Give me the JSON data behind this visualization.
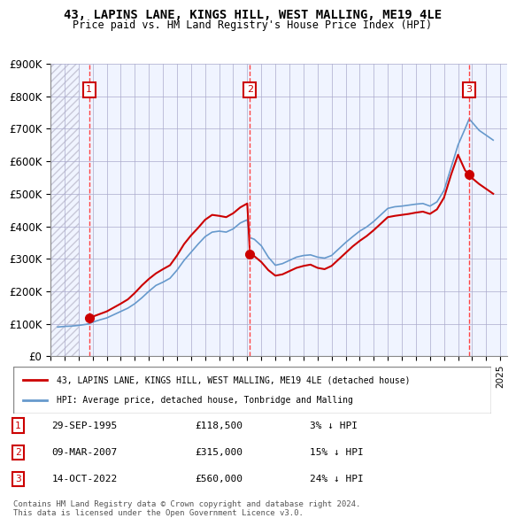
{
  "title": "43, LAPINS LANE, KINGS HILL, WEST MALLING, ME19 4LE",
  "subtitle": "Price paid vs. HM Land Registry's House Price Index (HPI)",
  "legend_label_red": "43, LAPINS LANE, KINGS HILL, WEST MALLING, ME19 4LE (detached house)",
  "legend_label_blue": "HPI: Average price, detached house, Tonbridge and Malling",
  "footer": "Contains HM Land Registry data © Crown copyright and database right 2024.\nThis data is licensed under the Open Government Licence v3.0.",
  "sales": [
    {
      "num": 1,
      "date": "29-SEP-1995",
      "price": 118500,
      "pct": "3%",
      "direction": "↓",
      "year": 1995.75
    },
    {
      "num": 2,
      "date": "09-MAR-2007",
      "price": 315000,
      "pct": "15%",
      "direction": "↓",
      "year": 2007.19
    },
    {
      "num": 3,
      "date": "14-OCT-2022",
      "price": 560000,
      "pct": "24%",
      "direction": "↓",
      "year": 2022.79
    }
  ],
  "ylim": [
    0,
    900000
  ],
  "xlim_start": 1993,
  "xlim_end": 2025.5,
  "hatch_end": 1995.0,
  "yticks": [
    0,
    100000,
    200000,
    300000,
    400000,
    500000,
    600000,
    700000,
    800000,
    900000
  ],
  "ytick_labels": [
    "£0",
    "£100K",
    "£200K",
    "£300K",
    "£400K",
    "£500K",
    "£600K",
    "£700K",
    "£800K",
    "£900K"
  ],
  "hpi_data": {
    "years": [
      1993.5,
      1994.0,
      1994.5,
      1995.0,
      1995.5,
      1995.75,
      1996.0,
      1996.5,
      1997.0,
      1997.5,
      1998.0,
      1998.5,
      1999.0,
      1999.5,
      2000.0,
      2000.5,
      2001.0,
      2001.5,
      2002.0,
      2002.5,
      2003.0,
      2003.5,
      2004.0,
      2004.5,
      2005.0,
      2005.5,
      2006.0,
      2006.5,
      2007.0,
      2007.19,
      2007.5,
      2008.0,
      2008.5,
      2009.0,
      2009.5,
      2010.0,
      2010.5,
      2011.0,
      2011.5,
      2012.0,
      2012.5,
      2013.0,
      2013.5,
      2014.0,
      2014.5,
      2015.0,
      2015.5,
      2016.0,
      2016.5,
      2017.0,
      2017.5,
      2018.0,
      2018.5,
      2019.0,
      2019.5,
      2020.0,
      2020.5,
      2021.0,
      2021.5,
      2022.0,
      2022.5,
      2022.79,
      2023.0,
      2023.5,
      2024.0,
      2024.5
    ],
    "values": [
      90000,
      92000,
      93000,
      95000,
      98000,
      100000,
      105000,
      112000,
      118000,
      128000,
      138000,
      148000,
      162000,
      180000,
      200000,
      218000,
      228000,
      240000,
      265000,
      295000,
      320000,
      345000,
      368000,
      382000,
      385000,
      382000,
      392000,
      410000,
      420000,
      365000,
      360000,
      340000,
      305000,
      280000,
      285000,
      295000,
      305000,
      310000,
      312000,
      305000,
      302000,
      310000,
      330000,
      350000,
      368000,
      385000,
      398000,
      415000,
      435000,
      455000,
      460000,
      462000,
      465000,
      468000,
      470000,
      462000,
      475000,
      510000,
      580000,
      650000,
      700000,
      730000,
      720000,
      695000,
      680000,
      665000
    ]
  },
  "price_data": {
    "years": [
      1995.75,
      1996.0,
      1996.5,
      1997.0,
      1997.5,
      1998.0,
      1998.5,
      1999.0,
      1999.5,
      2000.0,
      2000.5,
      2001.0,
      2001.5,
      2002.0,
      2002.5,
      2003.0,
      2003.5,
      2004.0,
      2004.5,
      2005.0,
      2005.5,
      2006.0,
      2006.5,
      2007.0,
      2007.19,
      2007.5,
      2008.0,
      2008.5,
      2009.0,
      2009.5,
      2010.0,
      2010.5,
      2011.0,
      2011.5,
      2012.0,
      2012.5,
      2013.0,
      2013.5,
      2014.0,
      2014.5,
      2015.0,
      2015.5,
      2016.0,
      2016.5,
      2017.0,
      2017.5,
      2018.0,
      2018.5,
      2019.0,
      2019.5,
      2020.0,
      2020.5,
      2021.0,
      2021.5,
      2022.0,
      2022.5,
      2022.79,
      2023.0,
      2023.5,
      2024.0,
      2024.5
    ],
    "values": [
      118500,
      122000,
      130000,
      138000,
      150000,
      162000,
      175000,
      195000,
      218000,
      238000,
      255000,
      268000,
      280000,
      310000,
      345000,
      372000,
      395000,
      420000,
      435000,
      432000,
      428000,
      440000,
      458000,
      470000,
      315000,
      308000,
      290000,
      265000,
      248000,
      252000,
      262000,
      272000,
      278000,
      282000,
      272000,
      268000,
      278000,
      298000,
      318000,
      338000,
      355000,
      370000,
      388000,
      408000,
      428000,
      432000,
      435000,
      438000,
      442000,
      445000,
      438000,
      452000,
      488000,
      558000,
      620000,
      572000,
      560000,
      548000,
      530000,
      515000,
      500000
    ]
  },
  "background_color": "#f0f4ff",
  "hatch_color": "#c8c8d8",
  "grid_color": "#aaaacc",
  "red_line_color": "#cc0000",
  "blue_line_color": "#6699cc",
  "marker_color": "#cc0000",
  "vline_color": "#ff4444",
  "box_color": "#cc0000"
}
